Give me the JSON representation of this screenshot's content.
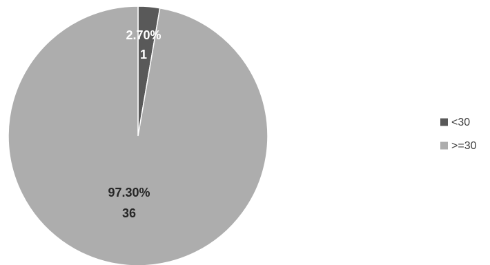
{
  "chart_data": {
    "type": "pie",
    "title": "",
    "categories": [
      "<30",
      ">=30"
    ],
    "values": [
      1,
      36
    ],
    "percent_labels": [
      "2.70%",
      "97.30%"
    ],
    "value_labels": [
      "1",
      "36"
    ],
    "colors": [
      "#595959",
      "#ADADAD"
    ],
    "label_colors": [
      "#ffffff",
      "#262626"
    ],
    "legend": {
      "position": "right",
      "entries": [
        "<30",
        ">=30"
      ]
    }
  }
}
